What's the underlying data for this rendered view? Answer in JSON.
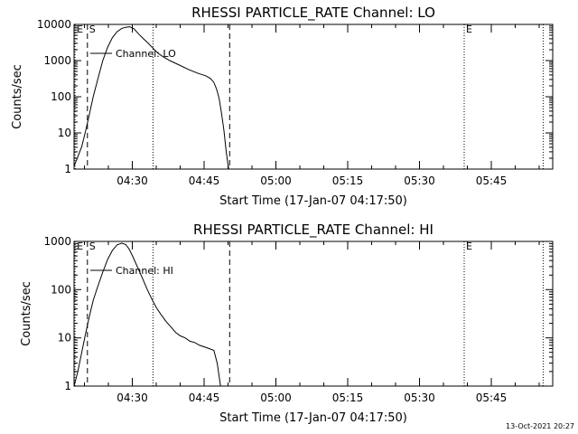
{
  "chart_data": [
    {
      "type": "line",
      "title": "RHESSI PARTICLE_RATE Channel: LO",
      "xlabel": "Start Time (17-Jan-07 04:17:50)",
      "ylabel": "Counts/sec",
      "yscale": "log",
      "ylim": [
        1,
        10000
      ],
      "xlim_minutes_after_start": [
        0,
        100
      ],
      "y_ticks": [
        "1",
        "10",
        "100",
        "1000",
        "10000"
      ],
      "x_ticks": [
        {
          "label": "04:30",
          "t": 12.17
        },
        {
          "label": "04:45",
          "t": 27.17
        },
        {
          "label": "05:00",
          "t": 42.17
        },
        {
          "label": "05:15",
          "t": 57.17
        },
        {
          "label": "05:30",
          "t": 72.17
        },
        {
          "label": "05:45",
          "t": 87.17
        }
      ],
      "legend": "Channel: LO",
      "markers": [
        {
          "label": "E",
          "t": 0.2,
          "style": "dotted"
        },
        {
          "label": "S",
          "t": 2.8,
          "style": "dashed"
        },
        {
          "label": "",
          "t": 16.5,
          "style": "dotted"
        },
        {
          "label": "",
          "t": 32.5,
          "style": "dashed"
        },
        {
          "label": "E",
          "t": 81.5,
          "style": "dotted"
        },
        {
          "label": "",
          "t": 98.0,
          "style": "dotted"
        }
      ],
      "series": [
        {
          "name": "Channel: LO",
          "t": [
            0.0,
            0.8,
            1.6,
            2.4,
            3.2,
            4.0,
            5.0,
            6.0,
            7.0,
            8.0,
            9.0,
            10.0,
            11.0,
            11.6,
            12.5,
            13.5,
            14.5,
            15.5,
            16.5,
            17.5,
            18.5,
            20.0,
            22.0,
            24.0,
            26.0,
            27.5,
            28.5,
            29.2,
            29.8,
            30.3,
            30.8,
            31.3,
            31.8,
            32.3
          ],
          "y": [
            1.2,
            2.2,
            4.2,
            11,
            33,
            100,
            320,
            1000,
            2300,
            4300,
            6300,
            7800,
            8400,
            8600,
            7600,
            5400,
            4000,
            3000,
            2200,
            1600,
            1300,
            1000,
            750,
            560,
            440,
            380,
            320,
            250,
            160,
            90,
            36,
            12,
            3,
            1
          ]
        }
      ]
    },
    {
      "type": "line",
      "title": "RHESSI PARTICLE_RATE Channel: HI",
      "xlabel": "Start Time (17-Jan-07 04:17:50)",
      "ylabel": "Counts/sec",
      "yscale": "log",
      "ylim": [
        1,
        1000
      ],
      "xlim_minutes_after_start": [
        0,
        100
      ],
      "y_ticks": [
        "1",
        "10",
        "100",
        "1000"
      ],
      "x_ticks": [
        {
          "label": "04:30",
          "t": 12.17
        },
        {
          "label": "04:45",
          "t": 27.17
        },
        {
          "label": "05:00",
          "t": 42.17
        },
        {
          "label": "05:15",
          "t": 57.17
        },
        {
          "label": "05:30",
          "t": 72.17
        },
        {
          "label": "05:45",
          "t": 87.17
        }
      ],
      "legend": "Channel: HI",
      "markers": [
        {
          "label": "E",
          "t": 0.2,
          "style": "dotted"
        },
        {
          "label": "S",
          "t": 2.8,
          "style": "dashed"
        },
        {
          "label": "",
          "t": 16.5,
          "style": "dotted"
        },
        {
          "label": "",
          "t": 32.5,
          "style": "dashed"
        },
        {
          "label": "E",
          "t": 81.5,
          "style": "dotted"
        },
        {
          "label": "",
          "t": 98.0,
          "style": "dotted"
        }
      ],
      "series": [
        {
          "name": "Channel: HI",
          "t": [
            0.0,
            0.8,
            1.6,
            2.4,
            3.2,
            4.0,
            5.0,
            6.0,
            7.0,
            8.0,
            9.0,
            10.0,
            10.8,
            11.5,
            12.3,
            13.2,
            14.2,
            15.2,
            16.2,
            17.2,
            18.2,
            19.2,
            20.2,
            21.2,
            22.2,
            23.2,
            24.2,
            25.2,
            26.2,
            27.2,
            28.2,
            29.2,
            29.9,
            30.3,
            30.6
          ],
          "y": [
            1.0,
            2.0,
            5.0,
            12,
            28,
            60,
            120,
            230,
            420,
            650,
            850,
            920,
            860,
            700,
            480,
            300,
            180,
            105,
            65,
            42,
            30,
            22,
            17,
            13,
            11,
            10,
            8.5,
            8,
            7,
            6.5,
            6,
            5.5,
            3,
            1.6,
            1
          ]
        }
      ]
    }
  ],
  "timestamp": "13-Oct-2021 20:27",
  "colors": {
    "background": "#ffffff",
    "foreground": "#000000"
  }
}
